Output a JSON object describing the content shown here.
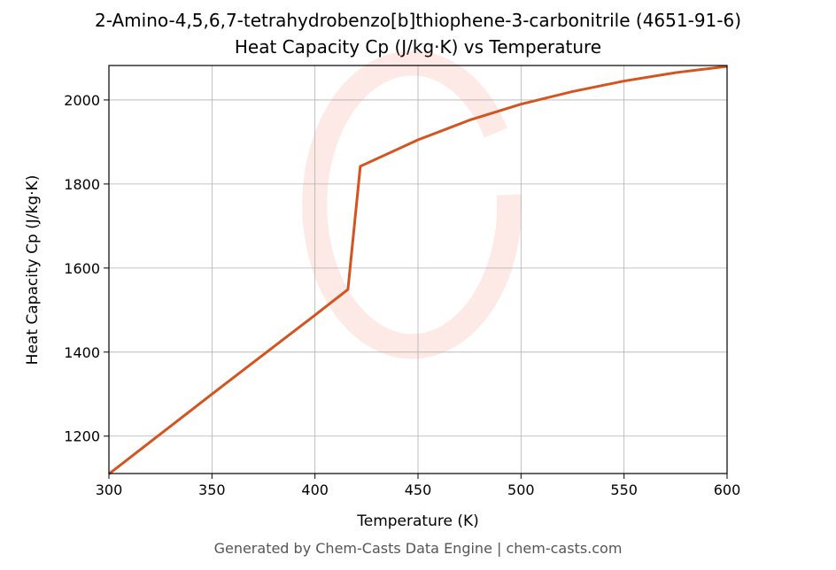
{
  "chart_data": {
    "type": "line",
    "title": "2-Amino-4,5,6,7-tetrahydrobenzo[b]thiophene-3-carbonitrile (4651-91-6)",
    "subtitle": "Heat Capacity Cp (J/kg·K) vs Temperature",
    "x_label": "Temperature (K)",
    "y_label": "Heat Capacity Cp (J/kg·K)",
    "footer": "Generated by Chem-Casts Data Engine | chem-casts.com",
    "x": [
      300,
      350,
      400,
      416,
      422,
      450,
      475,
      500,
      525,
      550,
      575,
      600
    ],
    "series": [
      {
        "name": "Cp",
        "color": "#d4541f",
        "values": [
          1110,
          1300,
          1488,
          1549,
          1842,
          1905,
          1952,
          1990,
          2020,
          2045,
          2065,
          2080
        ]
      }
    ],
    "xlim": [
      300,
      600
    ],
    "xticks": [
      300,
      350,
      400,
      450,
      500,
      550,
      600
    ],
    "ylim": [
      1111,
      2082
    ],
    "yticks": [
      1200,
      1400,
      1600,
      1800,
      2000
    ],
    "grid": true
  }
}
